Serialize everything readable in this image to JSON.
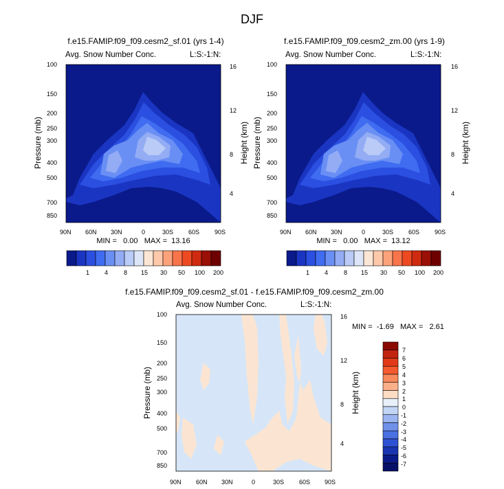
{
  "page_title": "DJF",
  "panels": [
    {
      "title": "f.e15.FAMIP.f09_f09.cesm2_sf.01 (yrs 1-4)",
      "left_label": "Avg. Snow Number Conc.",
      "right_label": "L:S:-1:N:",
      "ylabel": "Pressure (mb)",
      "y2label": "Height (km)",
      "stats": "MIN =   0.00   MAX =  13.16"
    },
    {
      "title": "f.e15.FAMIP.f09_f09.cesm2_zm.00 (yrs 1-9)",
      "left_label": "Avg. Snow Number Conc.",
      "right_label": "L:S:-1:N:",
      "ylabel": "Pressure (mb)",
      "y2label": "Height (km)",
      "stats": "MIN =   0.00   MAX =  13.12"
    },
    {
      "title": "f.e15.FAMIP.f09_f09.cesm2_sf.01 - f.e15.FAMIP.f09_f09.cesm2_zm.00",
      "left_label": "Avg. Snow Number Conc.",
      "right_label": "L:S:-1:N:",
      "ylabel": "Pressure (mb)",
      "y2label": "Height (km)",
      "stats": "MIN =  -1.69   MAX =   2.61"
    }
  ],
  "chart_data": [
    {
      "type": "heatmap",
      "title": "f.e15.FAMIP.f09_f09.cesm2_sf.01 (yrs 1-4)",
      "ylabel": "Pressure (mb)",
      "y2label": "Height (km)",
      "x_ticks": [
        "90N",
        "60N",
        "30N",
        "0",
        "30S",
        "60S",
        "90S"
      ],
      "y_ticks": [
        "100",
        "150",
        "200",
        "250",
        "300",
        "400",
        "500",
        "700",
        "850"
      ],
      "y2_ticks": [
        "16",
        "12",
        "8",
        "4"
      ],
      "y_scale": "log",
      "ylim": [
        1000,
        100
      ],
      "levels": [
        "1",
        "4",
        "8",
        "15",
        "30",
        "50",
        "100",
        "200"
      ],
      "min": 0.0,
      "max": 13.16
    },
    {
      "type": "heatmap",
      "title": "f.e15.FAMIP.f09_f09.cesm2_zm.00 (yrs 1-9)",
      "ylabel": "Pressure (mb)",
      "y2label": "Height (km)",
      "x_ticks": [
        "90N",
        "60N",
        "30N",
        "0",
        "30S",
        "60S",
        "90S"
      ],
      "y_ticks": [
        "100",
        "150",
        "200",
        "250",
        "300",
        "400",
        "500",
        "700",
        "850"
      ],
      "y2_ticks": [
        "16",
        "12",
        "8",
        "4"
      ],
      "y_scale": "log",
      "ylim": [
        1000,
        100
      ],
      "levels": [
        "1",
        "4",
        "8",
        "15",
        "30",
        "50",
        "100",
        "200"
      ],
      "min": 0.0,
      "max": 13.12
    },
    {
      "type": "heatmap",
      "title": "f.e15.FAMIP.f09_f09.cesm2_sf.01 - f.e15.FAMIP.f09_f09.cesm2_zm.00",
      "ylabel": "Pressure (mb)",
      "y2label": "Height (km)",
      "x_ticks": [
        "90N",
        "60N",
        "30N",
        "0",
        "30S",
        "60S",
        "90S"
      ],
      "y_ticks": [
        "100",
        "150",
        "200",
        "250",
        "300",
        "400",
        "500",
        "700",
        "850"
      ],
      "y2_ticks": [
        "16",
        "12",
        "8",
        "4"
      ],
      "y_scale": "log",
      "ylim": [
        1000,
        100
      ],
      "levels": [
        "7",
        "6",
        "5",
        "4",
        "3",
        "2",
        "1",
        "0",
        "-1",
        "-2",
        "-3",
        "-4",
        "-5",
        "-6",
        "-7"
      ],
      "min": -1.69,
      "max": 2.61
    }
  ],
  "colorbar_abs": {
    "labels": [
      "1",
      "4",
      "8",
      "15",
      "30",
      "50",
      "100",
      "200"
    ],
    "colors": [
      "#0a1a8a",
      "#1a35c2",
      "#2b4fe0",
      "#3f6cf0",
      "#6a8ff4",
      "#93acf4",
      "#b9cbf6",
      "#dce6f8",
      "#fbe5d4",
      "#fdc9aa",
      "#fca27a",
      "#f8744a",
      "#ee4a22",
      "#cf2a10",
      "#9a0f06",
      "#6e0000"
    ]
  },
  "colorbar_diff": {
    "labels": [
      "7",
      "6",
      "5",
      "4",
      "3",
      "2",
      "1",
      "0",
      "-1",
      "-2",
      "-3",
      "-4",
      "-5",
      "-6",
      "-7"
    ],
    "colors": [
      "#8a0a02",
      "#c22410",
      "#e23a18",
      "#f45a2e",
      "#f88a5c",
      "#fbb08a",
      "#fddcc4",
      "#e8f0fa",
      "#c3d5f4",
      "#9ab5f0",
      "#6f91ea",
      "#4a70e2",
      "#2f52d4",
      "#1a35b2",
      "#0a1a88",
      "#061066"
    ]
  },
  "colors": {
    "navy": "#0a1a8a",
    "diff_blue": "#d6e6f8",
    "diff_peach": "#fbe5d2"
  }
}
